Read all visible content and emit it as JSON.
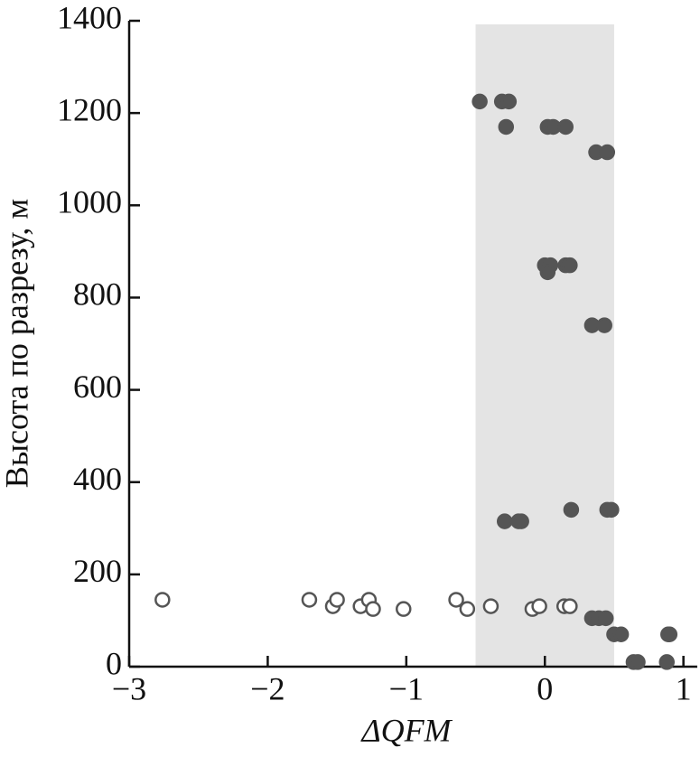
{
  "chart_data": {
    "type": "scatter",
    "x_label": "ΔQFM",
    "y_label": "Высота по разрезу, м",
    "xlim": [
      -3,
      1.1
    ],
    "ylim": [
      0,
      1400
    ],
    "xticks": [
      {
        "value": -3,
        "label": "−3"
      },
      {
        "value": -2,
        "label": "−2"
      },
      {
        "value": -1,
        "label": "−1"
      },
      0,
      1
    ],
    "yticks": [
      0,
      200,
      400,
      600,
      800,
      1000,
      1200,
      1400
    ],
    "band": {
      "x": [
        -0.5,
        0.5
      ],
      "color": "#e4e4e4"
    },
    "series": [
      {
        "color": "#555555",
        "fill": "#555555",
        "x": [
          -0.47,
          -0.31,
          -0.26,
          -0.28,
          0.02,
          0.06,
          0.15,
          0.37,
          0.45,
          0.0,
          0.04,
          0.15,
          0.18,
          0.02,
          0.34,
          0.43,
          -0.29,
          -0.19,
          -0.17,
          0.19,
          0.45,
          0.48,
          0.34,
          0.39,
          0.44,
          0.5,
          0.55,
          0.64,
          0.67,
          0.88,
          0.89,
          0.9
        ],
        "y": [
          1225,
          1225,
          1225,
          1170,
          1170,
          1170,
          1170,
          1115,
          1115,
          870,
          870,
          870,
          870,
          855,
          740,
          740,
          315,
          315,
          315,
          340,
          340,
          340,
          105,
          105,
          105,
          70,
          70,
          10,
          10,
          10,
          70,
          70
        ]
      },
      {
        "color": "#555555",
        "fill": "#ffffff",
        "x": [
          -2.76,
          -1.7,
          -1.53,
          -1.5,
          -1.33,
          -1.27,
          -1.24,
          -1.02,
          -0.64,
          -0.56,
          -0.39,
          -0.09,
          -0.04,
          0.14,
          0.18
        ],
        "y": [
          145,
          145,
          131,
          145,
          131,
          145,
          125,
          125,
          145,
          125,
          131,
          125,
          131,
          131,
          131
        ]
      }
    ]
  }
}
